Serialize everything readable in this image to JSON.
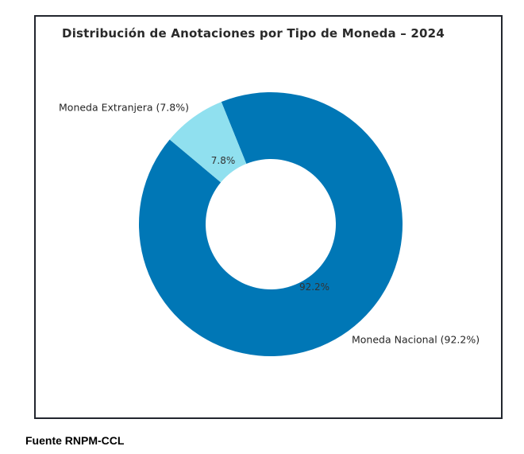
{
  "page": {
    "source_note": "Fuente RNPM-CCL"
  },
  "chart_data": {
    "type": "pie",
    "subtype": "donut",
    "title": "Distribución de Anotaciones por Tipo de Moneda – 2024",
    "categories": [
      "Moneda Nacional",
      "Moneda Extranjera"
    ],
    "values": [
      92.2,
      7.8
    ],
    "unit": "%",
    "colors": [
      "#0077b6",
      "#90e0ef"
    ],
    "start_angle_deg": 112,
    "direction": "clockwise",
    "donut_hole_ratio": 0.49,
    "legend_position": "none",
    "grid": false,
    "slices": [
      {
        "label": "Moneda Nacional",
        "value": 92.2,
        "pct_label": "92.2%",
        "outer_label": "Moneda Nacional (92.2%)",
        "color": "#0077b6"
      },
      {
        "label": "Moneda Extranjera",
        "value": 7.8,
        "pct_label": "7.8%",
        "outer_label": "Moneda Extranjera (7.8%)",
        "color": "#90e0ef"
      }
    ],
    "source": "Fuente RNPM-CCL"
  }
}
